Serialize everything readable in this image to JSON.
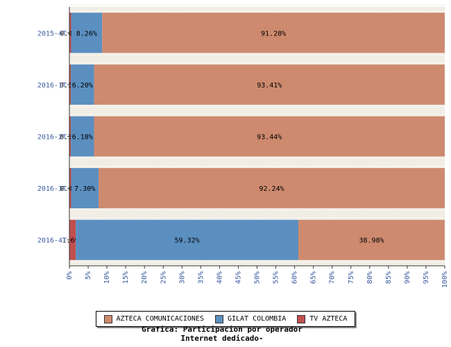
{
  "chart_data": {
    "type": "bar",
    "orientation": "horizontal",
    "stacked": true,
    "categories": [
      "2015-4T",
      "2016-1T",
      "2016-2T",
      "2016-3T",
      "2016-4T"
    ],
    "series": [
      {
        "name": "TV AZTECA",
        "color": "#c0504d",
        "values": [
          0.46,
          0.38,
          0.38,
          0.46,
          1.69
        ],
        "labels": [
          "0.46%",
          "0.38%",
          "0.38%",
          "0.46%",
          "1.69%"
        ]
      },
      {
        "name": "GILAT COLOMBIA",
        "color": "#5b8fc0",
        "values": [
          8.26,
          6.2,
          6.18,
          7.3,
          59.32
        ],
        "labels": [
          "8.26%",
          "6.20%",
          "6.18%",
          "7.30%",
          "59.32%"
        ]
      },
      {
        "name": "AZTECA COMUNICACIONES",
        "color": "#cd8a6f",
        "values": [
          91.28,
          93.41,
          93.44,
          92.24,
          38.98
        ],
        "labels": [
          "91.28%",
          "93.41%",
          "93.44%",
          "92.24%",
          "38.98%"
        ]
      }
    ],
    "xlim": [
      0,
      100
    ],
    "xticks": [
      "0%",
      "5%",
      "10%",
      "15%",
      "20%",
      "25%",
      "30%",
      "35%",
      "40%",
      "45%",
      "50%",
      "55%",
      "60%",
      "65%",
      "70%",
      "75%",
      "80%",
      "85%",
      "90%",
      "95%",
      "100%"
    ],
    "legend_order": [
      "AZTECA COMUNICACIONES",
      "GILAT COLOMBIA",
      "TV AZTECA"
    ],
    "legend_position": "bottom"
  },
  "caption": {
    "line1": "Grafica: Participacion por operador",
    "line2": "Internet dedicado-"
  },
  "colors": {
    "category_label": "#3b5aa0",
    "tick_label": "#3b5aa0",
    "band": "#f4f1ea"
  }
}
